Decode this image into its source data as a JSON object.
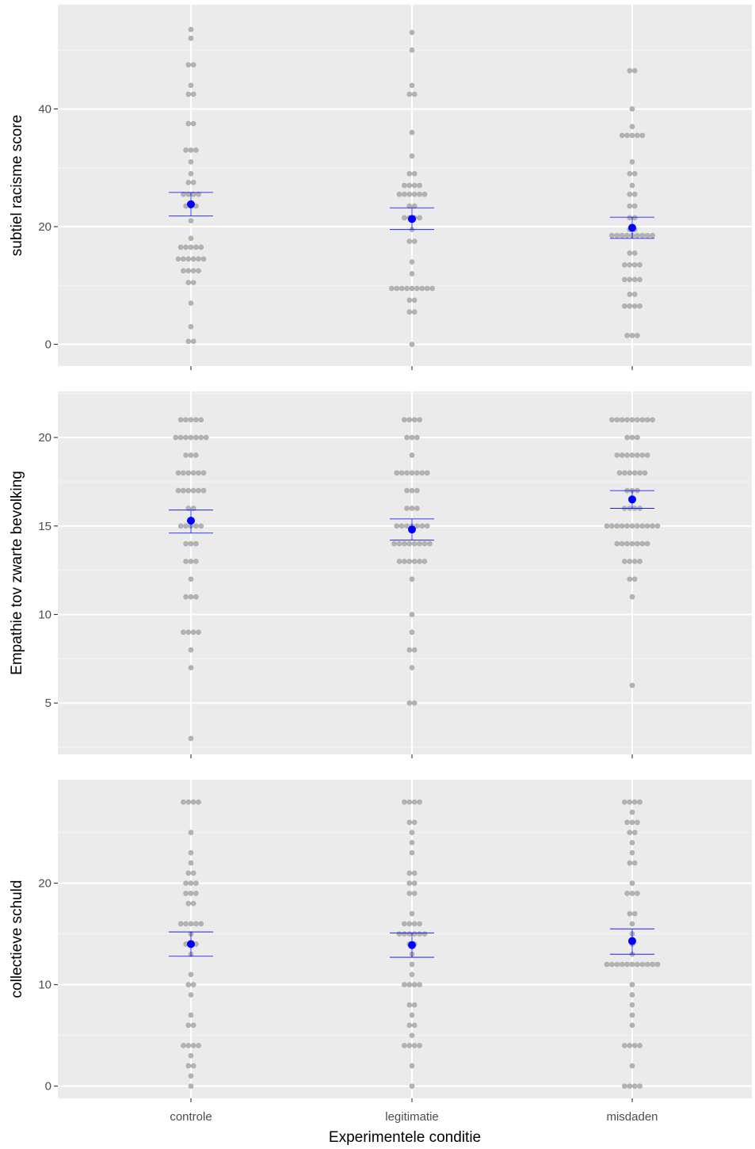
{
  "chart_data": [
    {
      "type": "scatter",
      "subtype": "dotplot-with-mean-and-error-bars",
      "categories": [
        "controle",
        "legitimatie",
        "misdaden"
      ],
      "xlabel": "",
      "ylabel": "subtiel racisme score",
      "ylim": [
        -3.7,
        57.7
      ],
      "yticks": [
        0,
        20,
        40
      ],
      "grid": true,
      "summary": [
        {
          "category": "controle",
          "mean": 23.8,
          "lower": 21.8,
          "upper": 25.8
        },
        {
          "category": "legitimatie",
          "mean": 21.3,
          "lower": 19.5,
          "upper": 23.2
        },
        {
          "category": "misdaden",
          "mean": 19.8,
          "lower": 18.0,
          "upper": 21.6
        }
      ],
      "points": [
        {
          "category": "controle",
          "values": [
            0.5,
            0.5,
            3,
            7,
            10.5,
            10.5,
            12.5,
            12.5,
            12.5,
            12.5,
            14.5,
            14.5,
            14.5,
            14.5,
            14.5,
            14.5,
            16.5,
            16.5,
            16.5,
            16.5,
            16.5,
            18,
            21,
            23.5,
            23.5,
            23.5,
            25.5,
            25.5,
            25.5,
            25.5,
            27.5,
            27.5,
            29,
            31,
            33,
            33,
            33,
            37.5,
            37.5,
            42.5,
            42.5,
            44,
            47.5,
            47.5,
            52,
            53.5
          ]
        },
        {
          "category": "legitimatie",
          "values": [
            0,
            5.5,
            5.5,
            7.5,
            7.5,
            9.5,
            9.5,
            9.5,
            9.5,
            9.5,
            9.5,
            9.5,
            9.5,
            9.5,
            12,
            14,
            17.5,
            17.5,
            19.5,
            21.5,
            21.5,
            21.5,
            21.5,
            23.5,
            23.5,
            25.5,
            25.5,
            25.5,
            25.5,
            25.5,
            25.5,
            27,
            27,
            27,
            27,
            29,
            29,
            32,
            36,
            42.5,
            42.5,
            44,
            50,
            53
          ]
        },
        {
          "category": "misdaden",
          "values": [
            1.5,
            1.5,
            1.5,
            6.5,
            6.5,
            6.5,
            6.5,
            8.5,
            8.5,
            11,
            11,
            11,
            11,
            13.5,
            13.5,
            13.5,
            13.5,
            15.5,
            15.5,
            18.5,
            18.5,
            18.5,
            18.5,
            18.5,
            18.5,
            18.5,
            18.5,
            18.5,
            19.5,
            19.5,
            21.5,
            21.5,
            23.5,
            23.5,
            25.5,
            25.5,
            27,
            29,
            29,
            31,
            35.5,
            35.5,
            35.5,
            35.5,
            35.5,
            37,
            40,
            46.5,
            46.5
          ]
        }
      ]
    },
    {
      "type": "scatter",
      "subtype": "dotplot-with-mean-and-error-bars",
      "categories": [
        "controle",
        "legitimatie",
        "misdaden"
      ],
      "xlabel": "",
      "ylabel": "Empathie tov zwarte bevolking",
      "ylim": [
        2.1,
        22.6
      ],
      "yticks": [
        5,
        10,
        15,
        20
      ],
      "grid": true,
      "summary": [
        {
          "category": "controle",
          "mean": 15.3,
          "lower": 14.6,
          "upper": 15.9
        },
        {
          "category": "legitimatie",
          "mean": 14.8,
          "lower": 14.2,
          "upper": 15.4
        },
        {
          "category": "misdaden",
          "mean": 16.5,
          "lower": 16.0,
          "upper": 17.0
        }
      ],
      "points": [
        {
          "category": "controle",
          "values": [
            3,
            7,
            8,
            9,
            9,
            9,
            9,
            11,
            11,
            11,
            12,
            13,
            13,
            13,
            14,
            14,
            14,
            15,
            15,
            15,
            15,
            15,
            16,
            16,
            17,
            17,
            17,
            17,
            17,
            17,
            18,
            18,
            18,
            18,
            18,
            18,
            19,
            19,
            19,
            20,
            20,
            20,
            20,
            20,
            20,
            20,
            21,
            21,
            21,
            21,
            21
          ]
        },
        {
          "category": "legitimatie",
          "values": [
            5,
            5,
            7,
            8,
            8,
            9,
            10,
            12,
            13,
            13,
            13,
            13,
            13,
            13,
            14,
            14,
            14,
            14,
            14,
            14,
            14,
            14,
            15,
            15,
            15,
            15,
            15,
            15,
            15,
            16,
            16,
            16,
            17,
            17,
            17,
            18,
            18,
            18,
            18,
            18,
            18,
            18,
            19,
            20,
            20,
            20,
            21,
            21,
            21,
            21
          ]
        },
        {
          "category": "misdaden",
          "values": [
            6,
            11,
            12,
            12,
            13,
            13,
            13,
            13,
            14,
            14,
            14,
            14,
            14,
            14,
            14,
            15,
            15,
            15,
            15,
            15,
            15,
            15,
            15,
            15,
            15,
            15,
            16,
            16,
            16,
            16,
            17,
            17,
            17,
            18,
            18,
            18,
            18,
            18,
            18,
            19,
            19,
            19,
            19,
            19,
            19,
            19,
            20,
            20,
            20,
            21,
            21,
            21,
            21,
            21,
            21,
            21,
            21,
            21
          ]
        }
      ]
    },
    {
      "type": "scatter",
      "subtype": "dotplot-with-mean-and-error-bars",
      "categories": [
        "controle",
        "legitimatie",
        "misdaden"
      ],
      "xlabel": "Experimentele conditie",
      "ylabel": "collectieve schuld",
      "ylim": [
        -1.2,
        30.2
      ],
      "yticks": [
        0,
        10,
        20
      ],
      "grid": true,
      "summary": [
        {
          "category": "controle",
          "mean": 14.0,
          "lower": 12.8,
          "upper": 15.2
        },
        {
          "category": "legitimatie",
          "mean": 13.9,
          "lower": 12.7,
          "upper": 15.1
        },
        {
          "category": "misdaden",
          "mean": 14.3,
          "lower": 13.0,
          "upper": 15.5
        }
      ],
      "points": [
        {
          "category": "controle",
          "values": [
            0,
            1,
            2,
            2,
            3,
            4,
            4,
            4,
            4,
            6,
            6,
            7,
            9,
            10,
            10,
            11,
            13,
            14,
            14,
            14,
            15,
            16,
            16,
            16,
            16,
            16,
            18,
            18,
            19,
            19,
            19,
            20,
            20,
            20,
            21,
            21,
            22,
            23,
            25,
            28,
            28,
            28,
            28
          ]
        },
        {
          "category": "legitimatie",
          "values": [
            0,
            2,
            4,
            4,
            4,
            4,
            5,
            6,
            6,
            7,
            8,
            8,
            10,
            10,
            10,
            10,
            11,
            12,
            13,
            14,
            14,
            15,
            15,
            15,
            15,
            15,
            15,
            16,
            16,
            16,
            16,
            17,
            19,
            19,
            20,
            20,
            21,
            21,
            23,
            24,
            25,
            26,
            26,
            28,
            28,
            28,
            28
          ]
        },
        {
          "category": "misdaden",
          "values": [
            0,
            0,
            0,
            0,
            2,
            4,
            4,
            4,
            4,
            6,
            7,
            8,
            9,
            10,
            12,
            12,
            12,
            12,
            12,
            12,
            12,
            12,
            12,
            12,
            12,
            13,
            14,
            15,
            16,
            17,
            17,
            19,
            19,
            19,
            20,
            22,
            22,
            23,
            24,
            25,
            25,
            26,
            26,
            26,
            27,
            28,
            28,
            28,
            28
          ]
        }
      ]
    }
  ]
}
